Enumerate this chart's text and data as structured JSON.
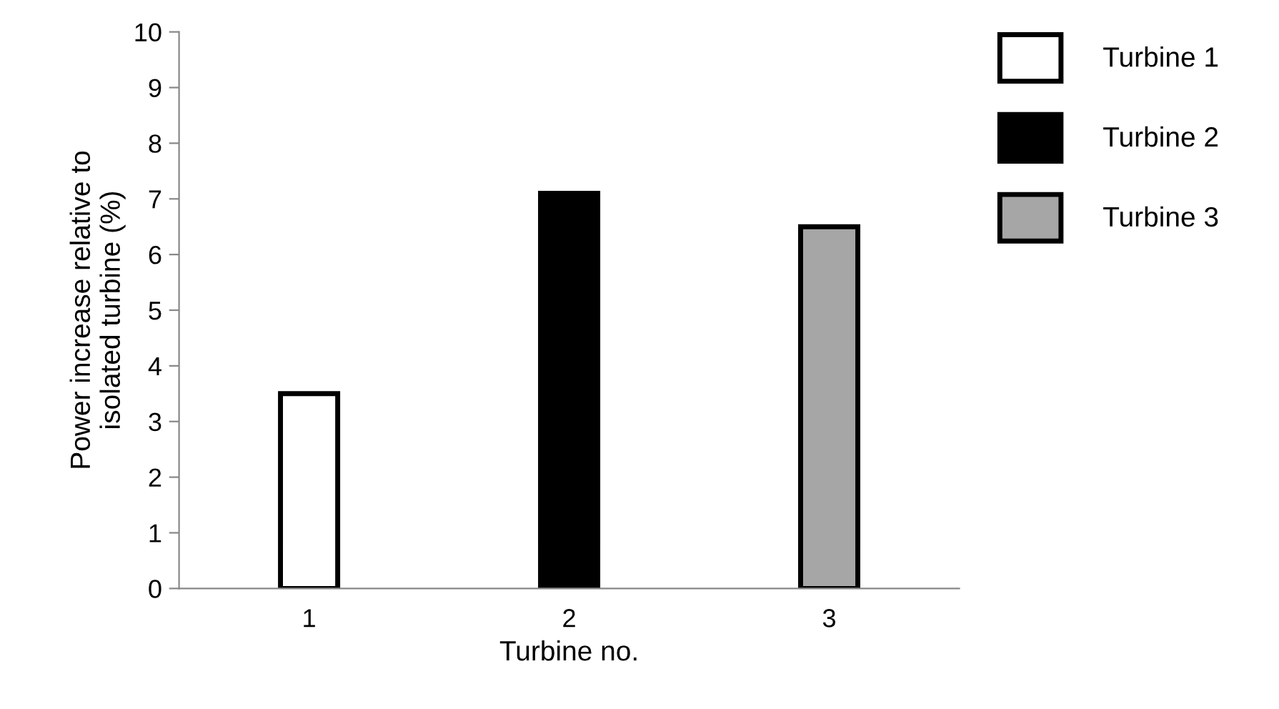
{
  "chart_data": {
    "type": "bar",
    "xlabel": "Turbine no.",
    "ylabel": "Power increase relative to\nisolated turbine (%)",
    "categories": [
      "1",
      "2",
      "3"
    ],
    "series": [
      {
        "name": "Turbine 1",
        "color": "#ffffff",
        "values": [
          3.5,
          null,
          null
        ]
      },
      {
        "name": "Turbine 2",
        "color": "#000000",
        "values": [
          null,
          7.1,
          null
        ]
      },
      {
        "name": "Turbine 3",
        "color": "#a6a6a6",
        "values": [
          null,
          null,
          6.5
        ]
      }
    ],
    "ylim": [
      0,
      10
    ],
    "yticks": [
      0,
      1,
      2,
      3,
      4,
      5,
      6,
      7,
      8,
      9,
      10
    ],
    "grid": false,
    "legend": "right"
  }
}
